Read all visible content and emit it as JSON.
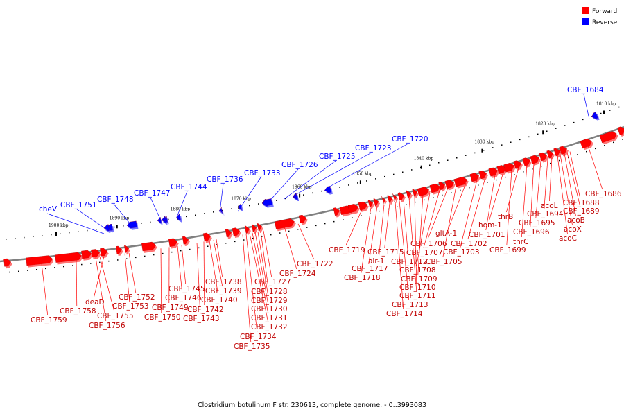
{
  "caption": "Clostridium botulinum F str. 230613, complete genome. - 0..3993083",
  "legend": [
    {
      "label": "Forward",
      "color": "#ff0000"
    },
    {
      "label": "Reverse",
      "color": "#0000ff"
    }
  ],
  "colors": {
    "forward": "#ff0000",
    "reverse": "#0000ff",
    "backbone": "#808080"
  },
  "ticks": [
    {
      "label": "1810 kbp",
      "kbp": 1810
    },
    {
      "label": "1820 kbp",
      "kbp": 1820
    },
    {
      "label": "1830 kbp",
      "kbp": 1830
    },
    {
      "label": "1840 kbp",
      "kbp": 1840
    },
    {
      "label": "1850 kbp",
      "kbp": 1850
    },
    {
      "label": "1860 kbp",
      "kbp": 1860
    },
    {
      "label": "1870 kbp",
      "kbp": 1870
    },
    {
      "label": "1880 kbp",
      "kbp": 1880
    },
    {
      "label": "1890 kbp",
      "kbp": 1890
    },
    {
      "label": "1900 kbp",
      "kbp": 1900
    }
  ],
  "reverse_genes": [
    "CBF_1684",
    "CBF_1720",
    "CBF_1723",
    "CBF_1725",
    "CBF_1726",
    "CBF_1733",
    "CBF_1736",
    "CBF_1744",
    "CBF_1747",
    "CBF_1748",
    "CBF_1751",
    "cheV"
  ],
  "forward_genes": [
    "CBF_1686",
    "CBF_1688",
    "CBF_1689",
    "acoB",
    "acoX",
    "acoC",
    "acoL",
    "CBF_1694",
    "CBF_1695",
    "CBF_1696",
    "thrC",
    "thrB",
    "CBF_1699",
    "hom-1",
    "CBF_1701",
    "CBF_1702",
    "CBF_1703",
    "gltA-1",
    "CBF_1705",
    "CBF_1706",
    "CBF_1707",
    "CBF_1708",
    "CBF_1709",
    "CBF_1710",
    "CBF_1711",
    "CBF_1712",
    "CBF_1713",
    "CBF_1714",
    "CBF_1715",
    "alr-1",
    "CBF_1717",
    "CBF_1718",
    "CBF_1719",
    "CBF_1722",
    "CBF_1724",
    "CBF_1727",
    "CBF_1728",
    "CBF_1729",
    "CBF_1730",
    "CBF_1731",
    "CBF_1732",
    "CBF_1734",
    "CBF_1735",
    "CBF_1738",
    "CBF_1739",
    "CBF_1740",
    "CBF_1742",
    "CBF_1743",
    "CBF_1745",
    "CBF_1746",
    "CBF_1749",
    "CBF_1750",
    "CBF_1752",
    "CBF_1753",
    "deaD",
    "CBF_1755",
    "CBF_1756",
    "CBF_1758",
    "CBF_1759"
  ]
}
